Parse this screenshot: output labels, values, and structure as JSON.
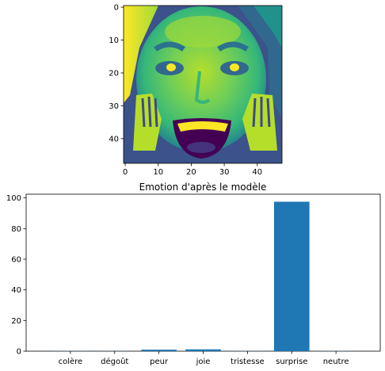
{
  "chart_data": [
    {
      "type": "heatmap",
      "colormap": "viridis",
      "content": "grayscale face image (48x48) rendered with viridis colormap",
      "x_ticks": [
        "0",
        "10",
        "20",
        "30",
        "40"
      ],
      "y_ticks": [
        "0",
        "10",
        "20",
        "30",
        "40"
      ],
      "xlim": [
        0,
        48
      ],
      "ylim": [
        0,
        48
      ]
    },
    {
      "type": "bar",
      "title": "Emotion d'après le modèle",
      "categories": [
        "colère",
        "dégoût",
        "peur",
        "joie",
        "tristesse",
        "surprise",
        "neutre"
      ],
      "values": [
        0.1,
        0.05,
        1.0,
        1.2,
        0.1,
        97.5,
        0.1
      ],
      "y_ticks": [
        "0",
        "20",
        "40",
        "60",
        "80",
        "100"
      ],
      "ylim": [
        0,
        102.4
      ],
      "bar_color": "#1f77b4"
    }
  ]
}
